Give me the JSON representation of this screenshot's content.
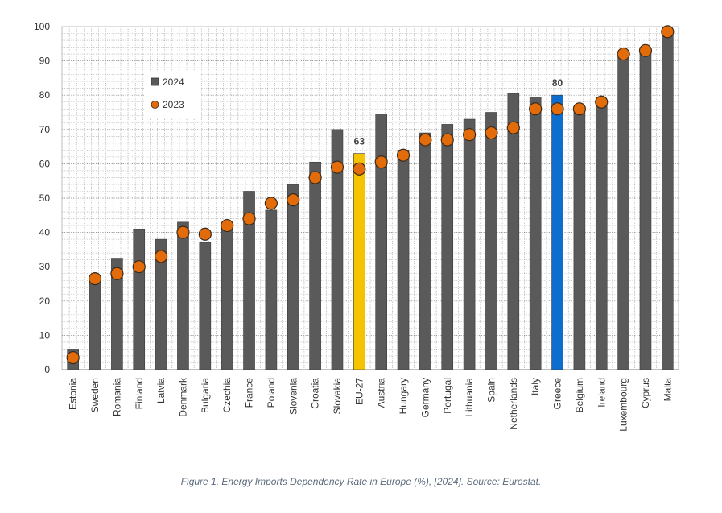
{
  "caption": "Figure 1. Energy Imports Dependency Rate in Europe (%), [2024]. Source: Eurostat.",
  "chart_data": {
    "type": "bar",
    "ylim": [
      0,
      100
    ],
    "yticks": [
      0,
      10,
      20,
      30,
      40,
      50,
      60,
      70,
      80,
      90,
      100
    ],
    "grid": true,
    "legend_position": "top-left",
    "categories": [
      "Estonia",
      "Sweden",
      "Romania",
      "Finland",
      "Latvia",
      "Denmark",
      "Bulgaria",
      "Czechia",
      "France",
      "Poland",
      "Slovenia",
      "Croatia",
      "Slovakia",
      "EU-27",
      "Austria",
      "Hungary",
      "Germany",
      "Portugal",
      "Lithuania",
      "Spain",
      "Netherlands",
      "Italy",
      "Greece",
      "Belgium",
      "Ireland",
      "Luxembourg",
      "Cyprus",
      "Malta"
    ],
    "series": [
      {
        "name": "2024",
        "marker": "bar",
        "color": "#5a5a5a",
        "values": [
          6,
          27,
          32.5,
          41,
          38,
          43,
          37,
          42,
          52,
          46.5,
          54,
          60.5,
          70,
          63,
          74.5,
          64,
          69,
          71.5,
          73,
          75,
          80.5,
          79.5,
          80,
          75,
          78.5,
          92,
          93,
          99
        ]
      },
      {
        "name": "2023",
        "marker": "circle",
        "color": "#e36c0a",
        "values": [
          3.5,
          26.5,
          28,
          30,
          33,
          40,
          39.5,
          42,
          44,
          48.5,
          49.5,
          56,
          59,
          58.5,
          60.5,
          62.5,
          67,
          67,
          68.5,
          69,
          70.5,
          76,
          76,
          76,
          78,
          92,
          93,
          98.5
        ]
      }
    ],
    "highlights": [
      {
        "category": "EU-27",
        "color": "#f5c400",
        "label": "63"
      },
      {
        "category": "Greece",
        "color": "#0d6ecf",
        "label": "80"
      }
    ]
  }
}
